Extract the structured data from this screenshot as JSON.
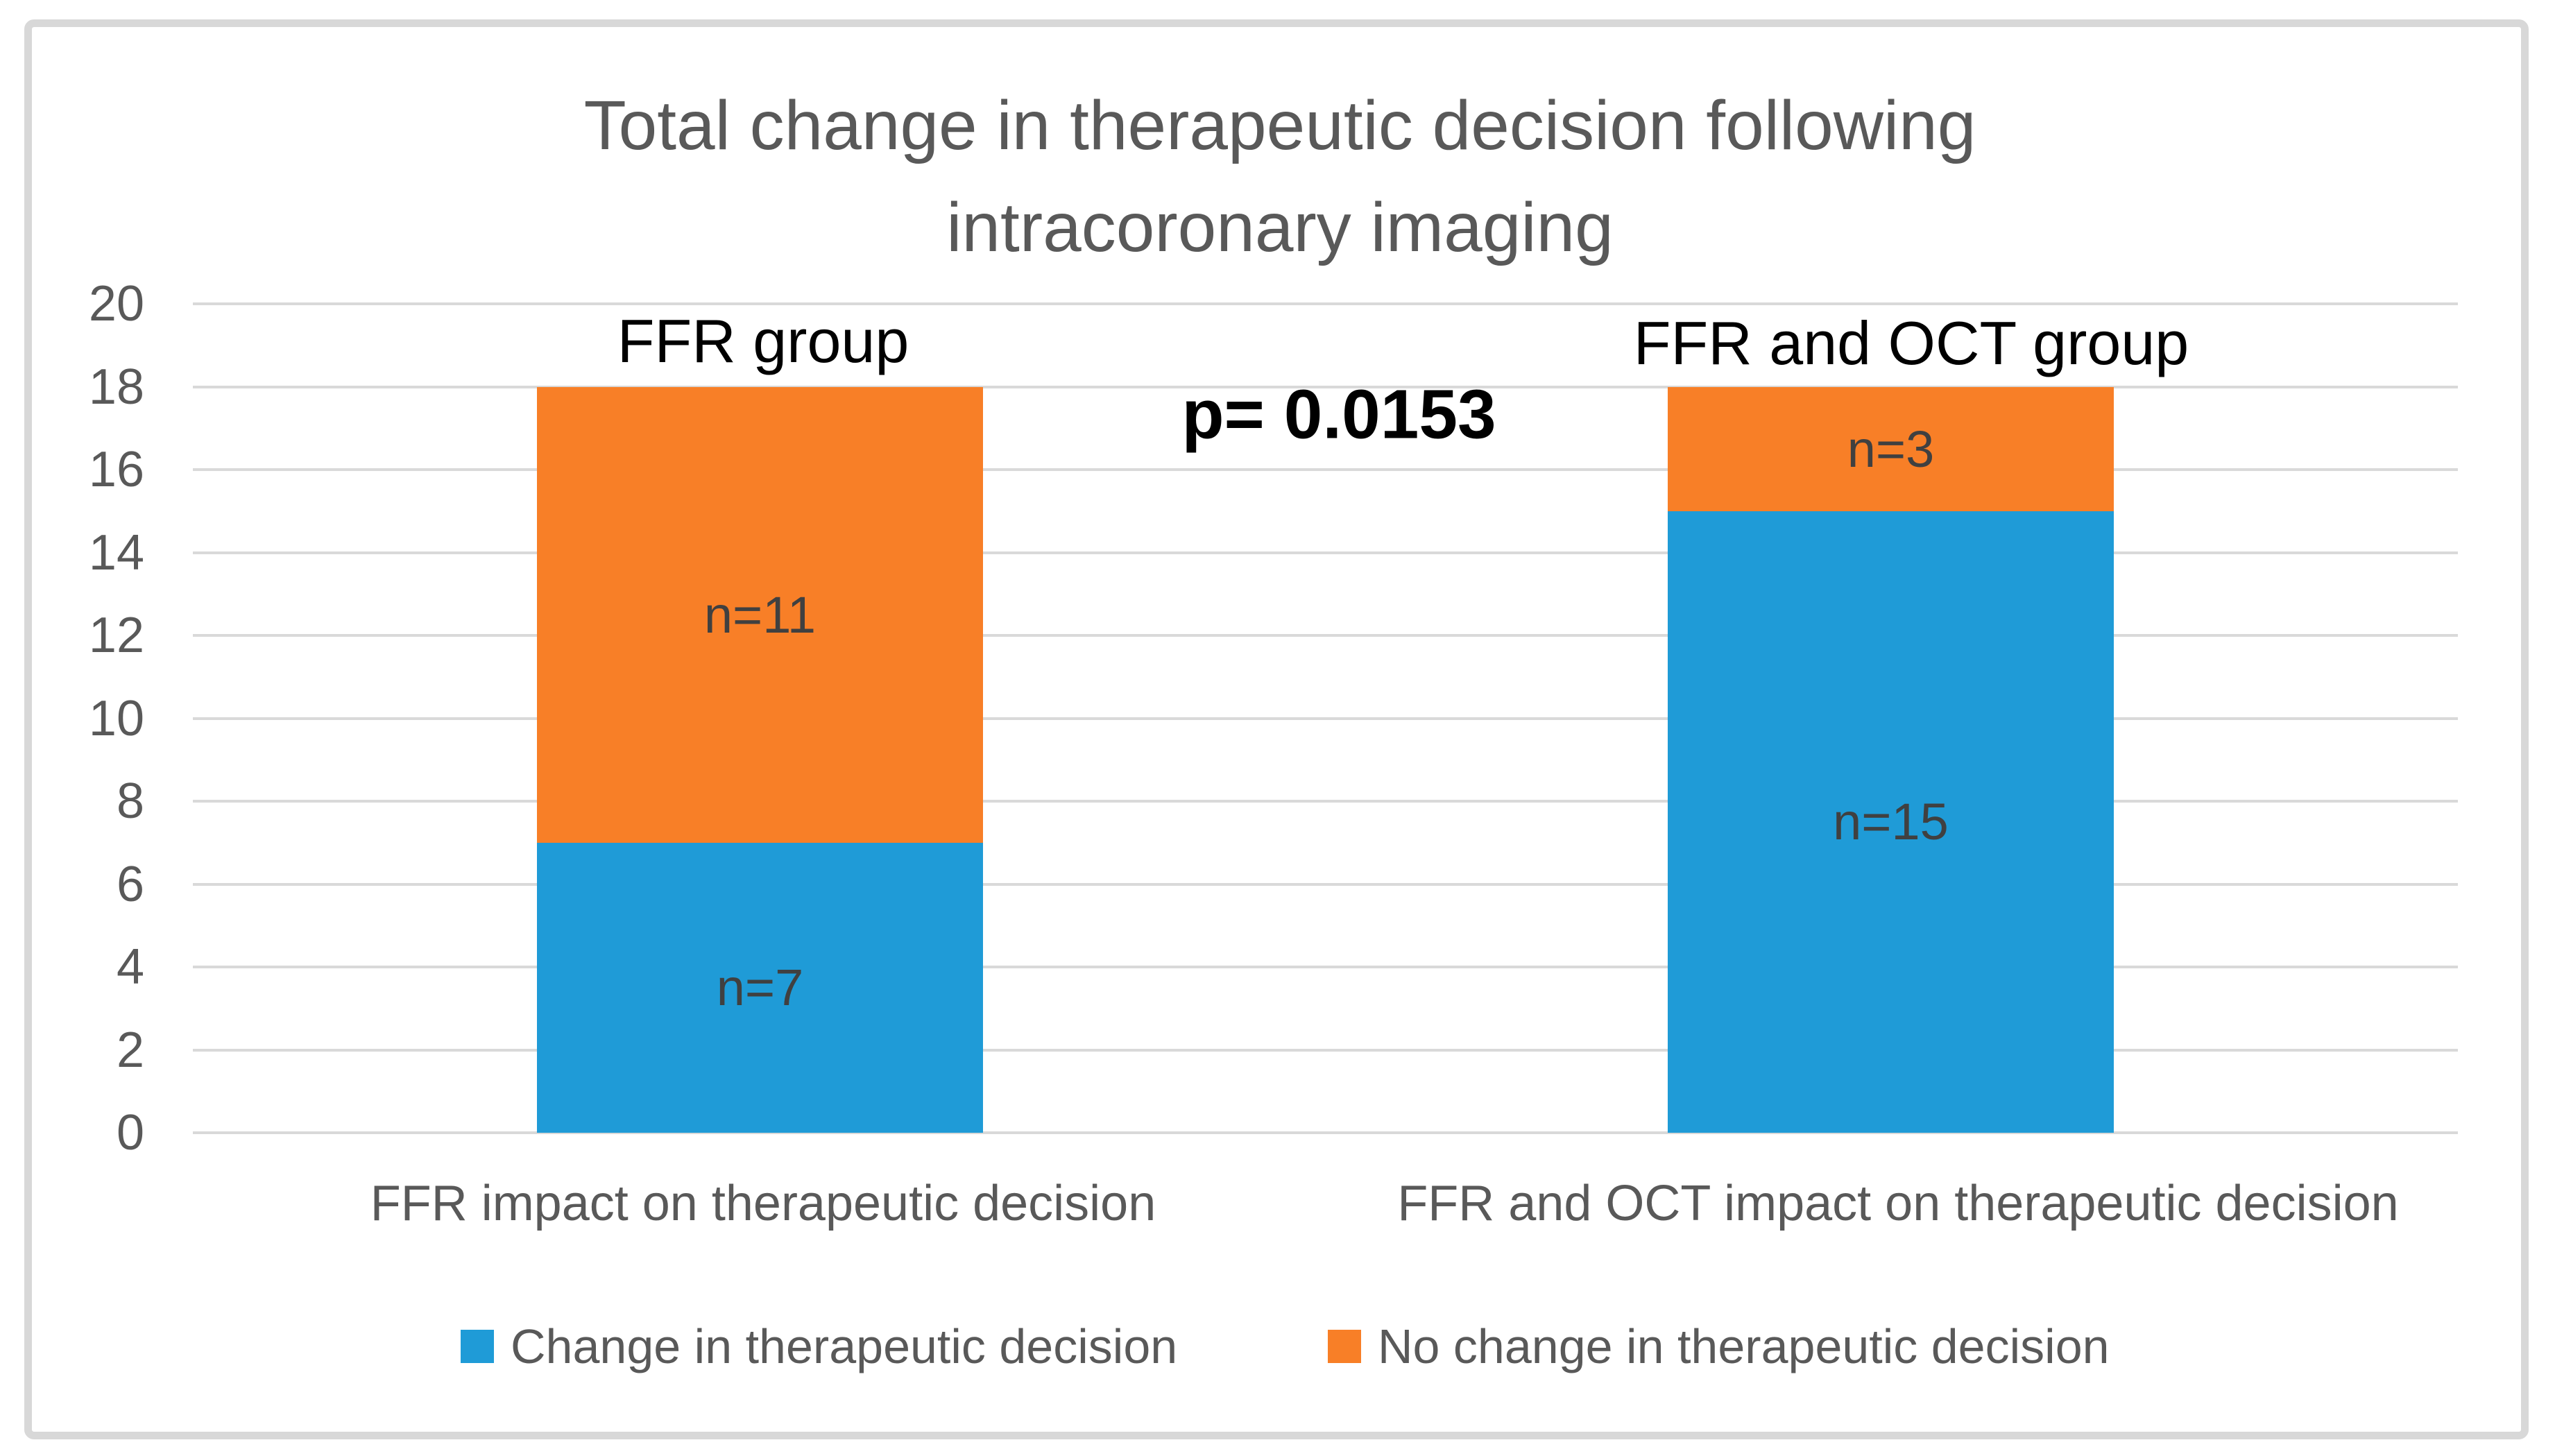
{
  "title": {
    "line1": "Total change in therapeutic decision following",
    "line2": "intracoronary imaging"
  },
  "annotations": {
    "group1": "FFR group",
    "group2": "FFR and OCT group",
    "p_value": "p= 0.0153"
  },
  "categories": {
    "cat1": "FFR impact on therapeutic decision",
    "cat2": "FFR and OCT impact on therapeutic decision"
  },
  "legend": {
    "item1": "Change in therapeutic decision",
    "item2": "No change in therapeutic decision"
  },
  "colors": {
    "blue": "#1F9BD7",
    "orange": "#F87F27",
    "text_gray": "#595959",
    "label_dark": "#404040",
    "grid": "#D9D9D9",
    "border": "#D8D8D8",
    "black": "#000000"
  },
  "chart_data": {
    "type": "bar",
    "stacked": true,
    "title": "Total change in therapeutic decision following intracoronary imaging",
    "categories": [
      "FFR impact on therapeutic decision",
      "FFR and OCT impact on therapeutic decision"
    ],
    "series": [
      {
        "name": "Change in therapeutic decision",
        "color_key": "blue",
        "values": [
          7,
          15
        ],
        "labels": [
          "n=7",
          "n=15"
        ]
      },
      {
        "name": "No change in therapeutic decision",
        "color_key": "orange",
        "values": [
          11,
          3
        ],
        "labels": [
          "n=11",
          "n=3"
        ]
      }
    ],
    "ylim": [
      0,
      20
    ],
    "ytick_step": 2,
    "grid": true,
    "legend_position": "bottom",
    "annotations": [
      "FFR group",
      "FFR and OCT group",
      "p= 0.0153"
    ]
  }
}
